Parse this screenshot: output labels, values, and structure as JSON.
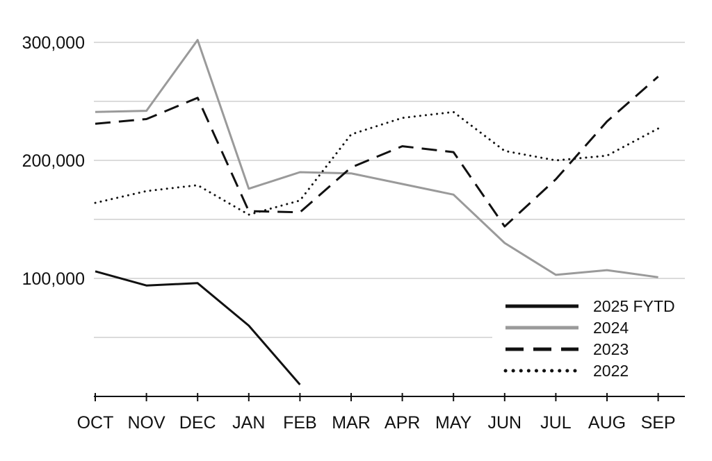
{
  "chart_data": {
    "type": "line",
    "categories": [
      "OCT",
      "NOV",
      "DEC",
      "JAN",
      "FEB",
      "MAR",
      "APR",
      "MAY",
      "JUN",
      "JUL",
      "AUG",
      "SEP"
    ],
    "y_ticks": [
      {
        "value": 100000,
        "label": "100,000"
      },
      {
        "value": 200000,
        "label": "200,000"
      },
      {
        "value": 300000,
        "label": "300,000"
      }
    ],
    "y_gridlines": [
      50000,
      100000,
      150000,
      200000,
      250000,
      300000
    ],
    "ylim": [
      0,
      320000
    ],
    "grid": true,
    "legend_position": "bottom-right",
    "series": [
      {
        "name": "2025 FYTD",
        "color": "#111111",
        "style": "solid",
        "values": [
          106000,
          94000,
          96000,
          60000,
          10000,
          null,
          null,
          null,
          null,
          null,
          null,
          null
        ]
      },
      {
        "name": "2024",
        "color": "#9a9a9a",
        "style": "solid",
        "values": [
          241000,
          242000,
          302000,
          176000,
          190000,
          189000,
          180000,
          171000,
          130000,
          103000,
          107000,
          101000
        ]
      },
      {
        "name": "2023",
        "color": "#111111",
        "style": "dashed",
        "values": [
          231000,
          235000,
          253000,
          157000,
          156000,
          194000,
          212000,
          207000,
          144000,
          184000,
          233000,
          271000
        ]
      },
      {
        "name": "2022",
        "color": "#111111",
        "style": "dotted",
        "values": [
          164000,
          174000,
          179000,
          154000,
          166000,
          222000,
          236000,
          241000,
          208000,
          200000,
          204000,
          227000
        ]
      }
    ]
  }
}
